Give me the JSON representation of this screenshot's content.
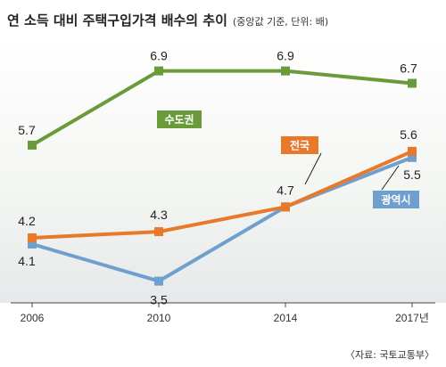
{
  "chart_data": {
    "type": "line",
    "title": "연 소득 대비 주택구입가격 배수의 추이",
    "subtitle": "(중앙값 기준, 단위: 배)",
    "x": [
      "2006",
      "2010",
      "2014",
      "2017년"
    ],
    "ylim": [
      2.5,
      7.5
    ],
    "grid": false,
    "series": [
      {
        "name": "수도권",
        "values": [
          5.7,
          6.9,
          6.9,
          6.7
        ],
        "labels": [
          "5.7",
          "6.9",
          "6.9",
          "6.7"
        ],
        "color": "#6a9a3a"
      },
      {
        "name": "전국",
        "values": [
          4.2,
          4.3,
          4.7,
          5.6
        ],
        "labels": [
          "4.2",
          "4.3",
          "4.7",
          "5.6"
        ],
        "color": "#e8792a"
      },
      {
        "name": "광역시",
        "values": [
          4.1,
          3.5,
          4.7,
          5.5
        ],
        "labels": [
          "4.1",
          "3.5",
          "",
          "5.5"
        ],
        "color": "#6f9fcf"
      }
    ],
    "source": "〈자료: 국토교통부〉"
  }
}
